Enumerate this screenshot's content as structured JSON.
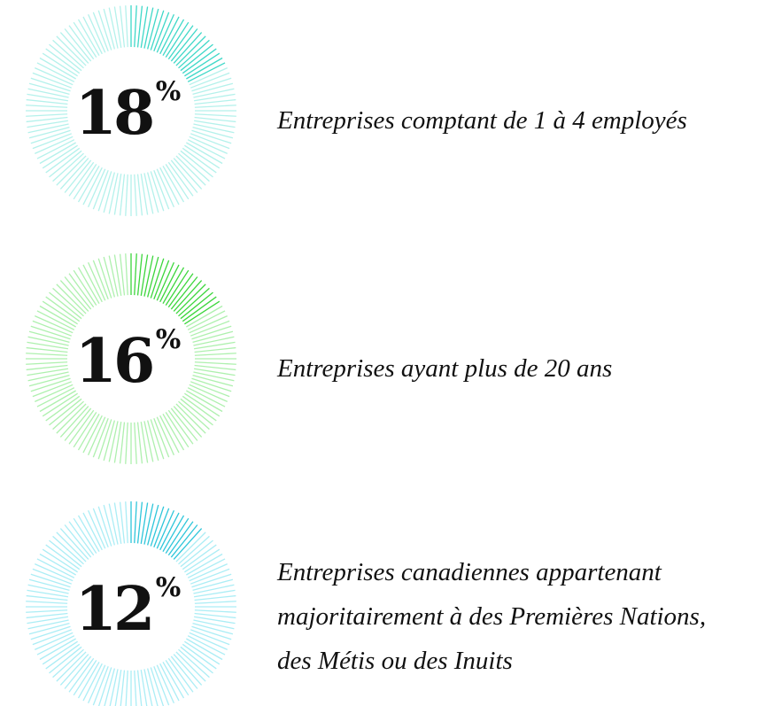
{
  "chart_data": [
    {
      "type": "gauge",
      "value": 18,
      "unit": "%",
      "color": "#3fd8c8",
      "track_color": "#b4f1eb",
      "label_lines": [
        "Entreprises comptant de 1 à 4 employés"
      ]
    },
    {
      "type": "gauge",
      "value": 16,
      "unit": "%",
      "color": "#3cd63c",
      "track_color": "#aef0ae",
      "label_lines": [
        "Entreprises ayant plus de 20 ans"
      ]
    },
    {
      "type": "gauge",
      "value": 12,
      "unit": "%",
      "color": "#2ec6da",
      "track_color": "#abedf5",
      "label_lines": [
        "Entreprises canadiennes appartenant",
        "majoritairement à des Premières Nations,",
        "des Métis ou des Inuits"
      ]
    }
  ]
}
